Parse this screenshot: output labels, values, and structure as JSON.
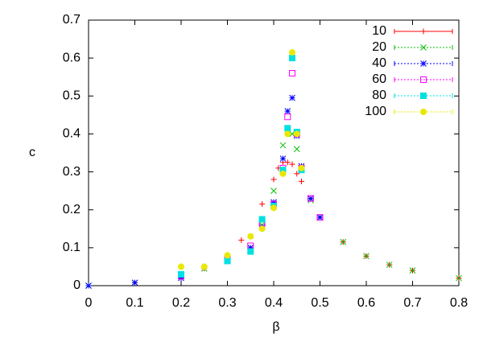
{
  "chart_data": {
    "type": "scatter",
    "xlabel": "β",
    "ylabel": "c",
    "xlim": [
      0,
      0.8
    ],
    "ylim": [
      0,
      0.7
    ],
    "xticks": [
      0,
      0.1,
      0.2,
      0.3,
      0.4,
      0.5,
      0.6,
      0.7,
      0.8
    ],
    "yticks": [
      0,
      0.1,
      0.2,
      0.3,
      0.4,
      0.5,
      0.6,
      0.7
    ],
    "legend": "top-right",
    "series": [
      {
        "name": "10",
        "color": "#ff0000",
        "marker": "plus",
        "x": [
          0,
          0.1,
          0.2,
          0.25,
          0.3,
          0.33,
          0.375,
          0.4,
          0.41,
          0.42,
          0.43,
          0.44,
          0.45,
          0.46,
          0.48,
          0.5,
          0.55,
          0.6,
          0.65,
          0.7,
          0.8
        ],
        "values": [
          0,
          0.008,
          0.03,
          0.045,
          0.07,
          0.12,
          0.215,
          0.28,
          0.31,
          0.325,
          0.325,
          0.32,
          0.295,
          0.275,
          0.23,
          0.18,
          0.115,
          0.078,
          0.055,
          0.04,
          0.02
        ]
      },
      {
        "name": "20",
        "color": "#00c000",
        "marker": "cross",
        "x": [
          0,
          0.1,
          0.2,
          0.25,
          0.3,
          0.35,
          0.375,
          0.4,
          0.42,
          0.44,
          0.45,
          0.46,
          0.48,
          0.5,
          0.55,
          0.6,
          0.65,
          0.7,
          0.8
        ],
        "values": [
          0,
          0.008,
          0.025,
          0.045,
          0.07,
          0.1,
          0.16,
          0.25,
          0.37,
          0.4,
          0.36,
          0.31,
          0.225,
          0.18,
          0.115,
          0.078,
          0.055,
          0.04,
          0.02
        ]
      },
      {
        "name": "40",
        "color": "#0000ff",
        "marker": "star",
        "x": [
          0,
          0.1,
          0.2,
          0.3,
          0.35,
          0.375,
          0.4,
          0.42,
          0.43,
          0.44,
          0.45,
          0.46,
          0.48,
          0.5
        ],
        "values": [
          0,
          0.008,
          0.02,
          0.065,
          0.1,
          0.155,
          0.22,
          0.335,
          0.46,
          0.495,
          0.395,
          0.315,
          0.23,
          0.18
        ]
      },
      {
        "name": "60",
        "color": "#ff00ff",
        "marker": "box",
        "x": [
          0.2,
          0.3,
          0.35,
          0.375,
          0.4,
          0.42,
          0.43,
          0.44,
          0.45,
          0.46,
          0.48,
          0.5
        ],
        "values": [
          0.025,
          0.07,
          0.105,
          0.165,
          0.215,
          0.31,
          0.445,
          0.56,
          0.4,
          0.31,
          0.23,
          0.18
        ]
      },
      {
        "name": "80",
        "color": "#00e0e0",
        "marker": "filled-box",
        "x": [
          0.2,
          0.3,
          0.35,
          0.375,
          0.4,
          0.42,
          0.43,
          0.44,
          0.45,
          0.46
        ],
        "values": [
          0.03,
          0.065,
          0.09,
          0.175,
          0.21,
          0.305,
          0.415,
          0.6,
          0.405,
          0.305
        ]
      },
      {
        "name": "100",
        "color": "#e8e800",
        "marker": "circle",
        "x": [
          0.2,
          0.25,
          0.3,
          0.35,
          0.375,
          0.4,
          0.42,
          0.43,
          0.44,
          0.45,
          0.46
        ],
        "values": [
          0.05,
          0.05,
          0.08,
          0.13,
          0.15,
          0.205,
          0.295,
          0.4,
          0.615,
          0.4,
          0.31
        ]
      }
    ]
  }
}
